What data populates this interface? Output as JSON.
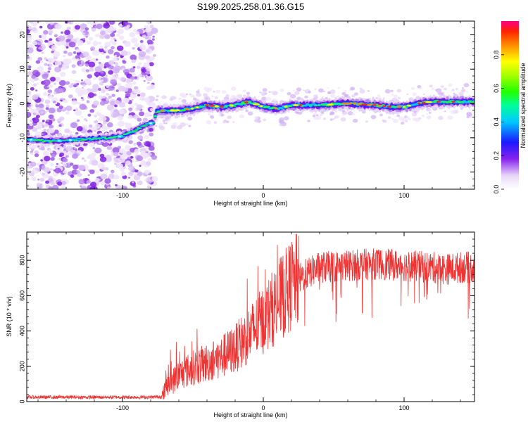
{
  "title": "S199.2025.258.01.36.G15",
  "chart_data": [
    {
      "type": "heatmap",
      "xlabel": "Height of straight line (km)",
      "ylabel": "Frequency (Hz)",
      "xlim": [
        -168,
        150
      ],
      "ylim": [
        -25,
        24
      ],
      "xticks": [
        -100,
        0,
        100
      ],
      "xtick_labels": [
        "-100",
        "0",
        "100"
      ],
      "yticks": [
        -20,
        -10,
        0,
        10,
        20
      ],
      "ytick_labels": [
        "-20",
        "-10",
        "0",
        "10",
        "20"
      ],
      "ridge": {
        "x": [
          -168,
          -150,
          -130,
          -110,
          -100,
          -92,
          -85,
          -78,
          -76,
          -60,
          -50,
          -40,
          -30,
          -20,
          -10,
          0,
          10,
          20,
          40,
          60,
          80,
          90,
          100,
          110,
          120,
          130,
          140,
          150
        ],
        "freq": [
          -10.5,
          -11,
          -10.5,
          -10,
          -9.5,
          -8,
          -6.5,
          -5.5,
          -2.3,
          -2,
          -1.5,
          -0.5,
          -1,
          -0.5,
          0.5,
          -1,
          -1.5,
          -0.5,
          -0.5,
          0,
          -0.5,
          -1,
          -1,
          0,
          0.5,
          0.5,
          0.5,
          0.5
        ]
      },
      "colorbar": {
        "label": "Normalized spectral amplitude",
        "range": [
          0,
          1
        ],
        "ticks": [
          0.0,
          0.2,
          0.4,
          0.6,
          0.8
        ],
        "tick_labels": [
          "0.0",
          "0.2",
          "0.4",
          "0.6",
          "0.8"
        ]
      }
    },
    {
      "type": "line",
      "xlabel": "Height of straight line (km)",
      "ylabel": "SNR (10 * v/v)",
      "xlim": [
        -168,
        150
      ],
      "ylim": [
        0,
        960
      ],
      "xticks": [
        -100,
        0,
        100
      ],
      "xtick_labels": [
        "-100",
        "0",
        "100"
      ],
      "yticks": [
        0,
        200,
        400,
        600,
        800
      ],
      "ytick_labels": [
        "0",
        "200",
        "400",
        "600",
        "800"
      ],
      "line_color": "#ee3333",
      "series": [
        {
          "name": "SNR",
          "x": [
            -168,
            -140,
            -110,
            -80,
            -72,
            -68,
            -60,
            -50,
            -40,
            -30,
            -20,
            -10,
            0,
            10,
            20,
            30,
            40,
            60,
            80,
            100,
            120,
            130,
            140,
            150
          ],
          "y": [
            25,
            25,
            25,
            25,
            28,
            90,
            150,
            190,
            220,
            250,
            300,
            380,
            460,
            560,
            660,
            720,
            760,
            770,
            780,
            770,
            760,
            750,
            760,
            760
          ]
        }
      ]
    }
  ]
}
